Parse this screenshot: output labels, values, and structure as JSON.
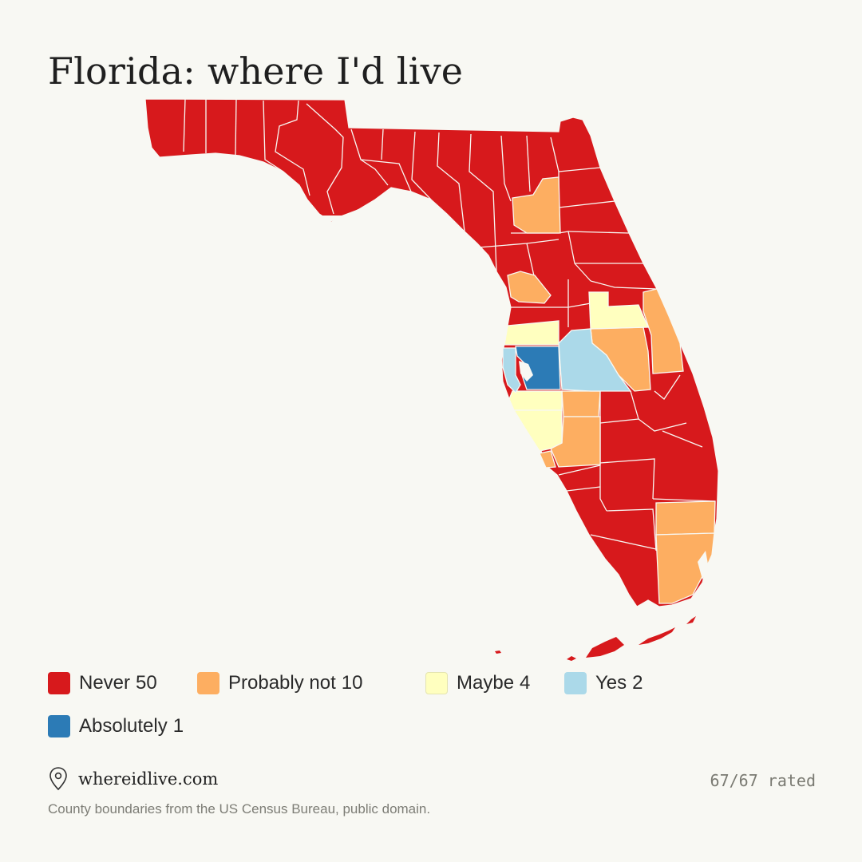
{
  "title": "Florida: where I'd live",
  "colors": {
    "never": "#d7191c",
    "probably_not": "#fdae61",
    "maybe": "#ffffbf",
    "yes": "#abd9e9",
    "absolutely": "#2c7bb6",
    "background": "#f8f8f3",
    "border": "#f8f8f3"
  },
  "legend": [
    {
      "label": "Never",
      "count": "50",
      "color": "#d7191c"
    },
    {
      "label": "Probably not",
      "count": "10",
      "color": "#fdae61"
    },
    {
      "label": "Maybe",
      "count": "4",
      "color": "#ffffbf"
    },
    {
      "label": "Yes",
      "count": "2",
      "color": "#abd9e9"
    },
    {
      "label": "Absolutely",
      "count": "1",
      "color": "#2c7bb6"
    }
  ],
  "footer": {
    "icon": "map-pin-icon",
    "site": "whereidlive.com",
    "rated": "67/67 rated",
    "credit": "County boundaries from the US Census Bureau, public domain."
  }
}
